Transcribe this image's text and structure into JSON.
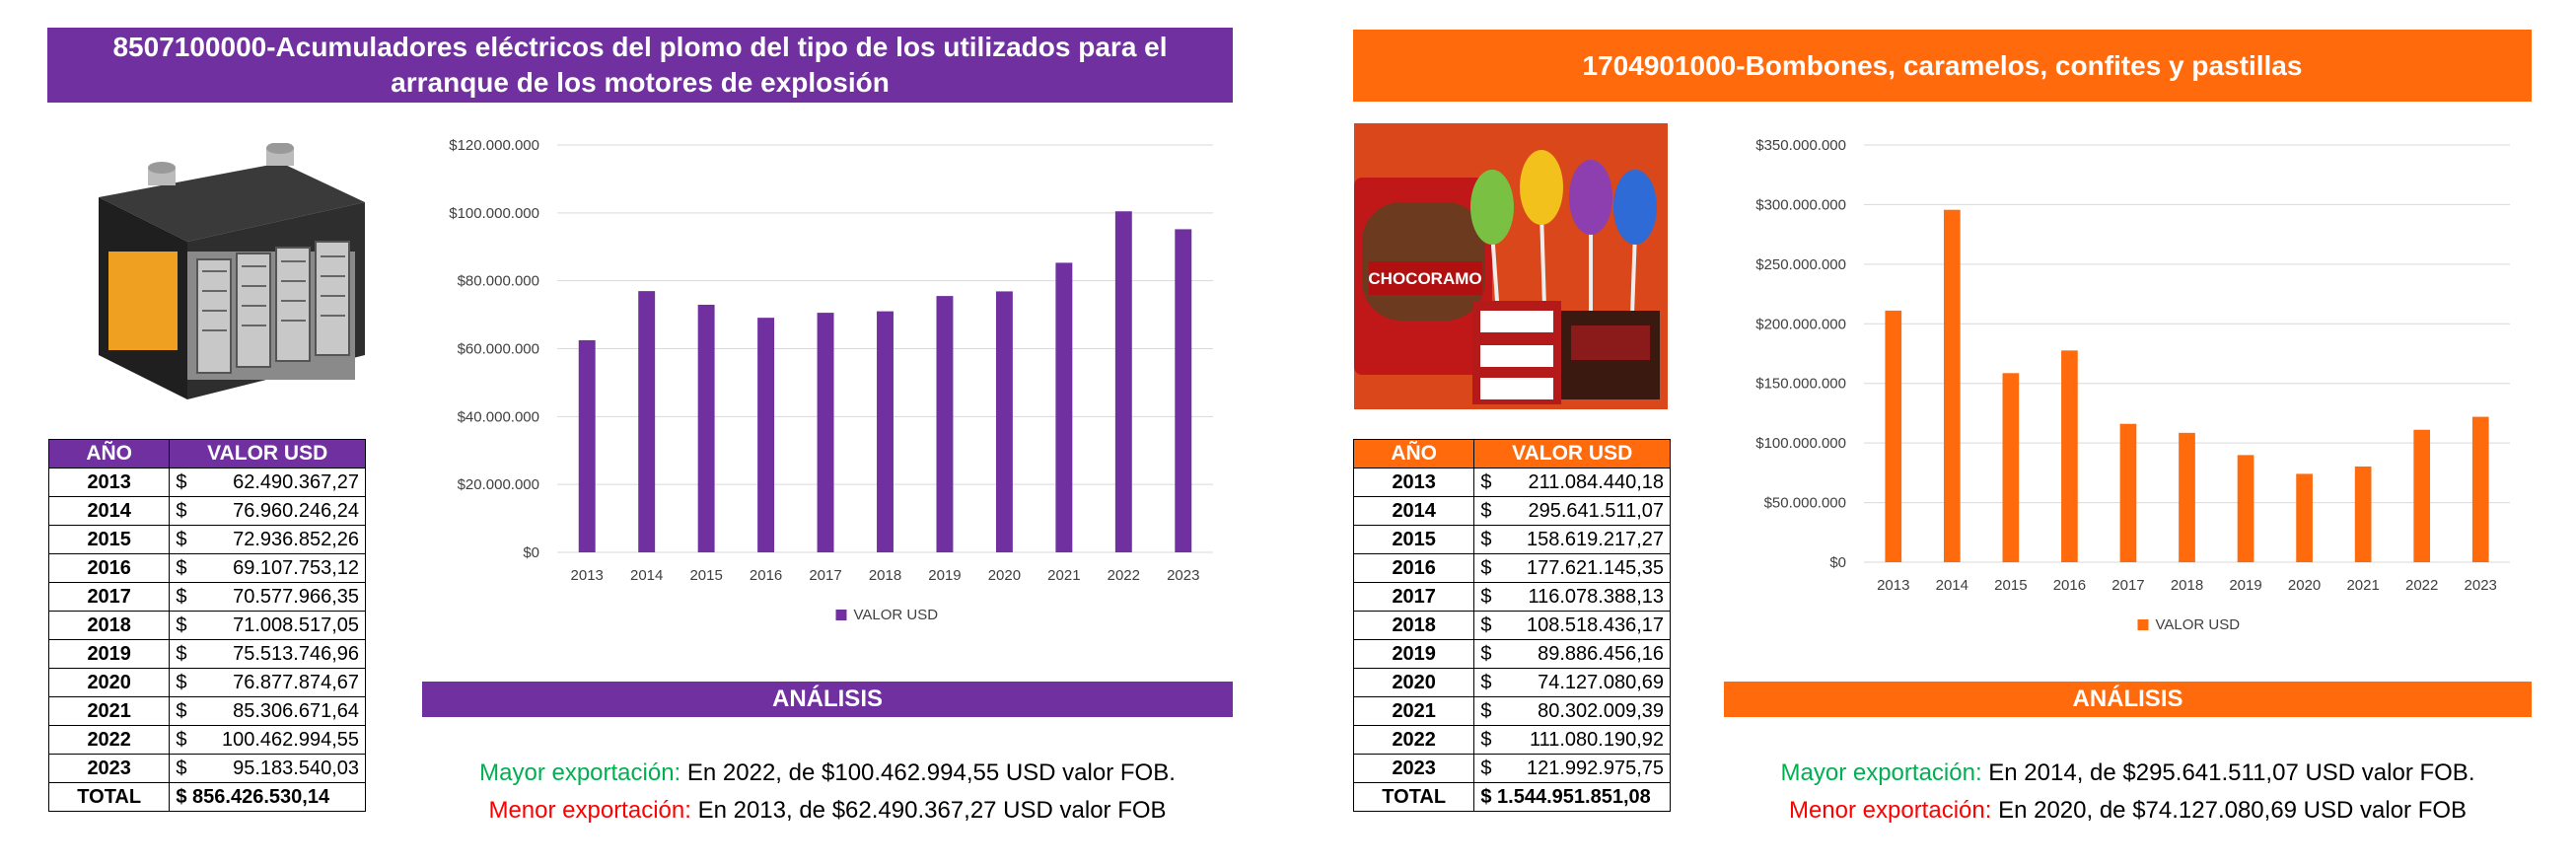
{
  "left": {
    "title": "8507100000-Acumuladores eléctricos del plomo del tipo de los utilizados para el arranque de los motores de explosión",
    "image_icon": "car-battery-illustration",
    "table": {
      "header_year": "AÑO",
      "header_value": "VALOR USD",
      "currency": "$",
      "rows": [
        {
          "year": "2013",
          "value": "62.490.367,27"
        },
        {
          "year": "2014",
          "value": "76.960.246,24"
        },
        {
          "year": "2015",
          "value": "72.936.852,26"
        },
        {
          "year": "2016",
          "value": "69.107.753,12"
        },
        {
          "year": "2017",
          "value": "70.577.966,35"
        },
        {
          "year": "2018",
          "value": "71.008.517,05"
        },
        {
          "year": "2019",
          "value": "75.513.746,96"
        },
        {
          "year": "2020",
          "value": "76.877.874,67"
        },
        {
          "year": "2021",
          "value": "85.306.671,64"
        },
        {
          "year": "2022",
          "value": "100.462.994,55"
        },
        {
          "year": "2023",
          "value": "95.183.540,03"
        }
      ],
      "total_label": "TOTAL",
      "total_value": "$ 856.426.530,14"
    },
    "analysis": {
      "title": "ANÁLISIS",
      "max_label": "Mayor exportación:",
      "max_text": " En 2022, de $100.462.994,55 USD valor FOB.",
      "min_label": "Menor exportación:",
      "min_text": " En 2013, de $62.490.367,27 USD valor FOB"
    },
    "chart_data": {
      "type": "bar",
      "color": "#7030A0",
      "categories": [
        "2013",
        "2014",
        "2015",
        "2016",
        "2017",
        "2018",
        "2019",
        "2020",
        "2021",
        "2022",
        "2023"
      ],
      "series": [
        {
          "name": "VALOR USD",
          "values": [
            62490367.27,
            76960246.24,
            72936852.26,
            69107753.12,
            70577966.35,
            71008517.05,
            75513746.96,
            76877874.67,
            85306671.64,
            100462994.55,
            95183540.03
          ]
        }
      ],
      "ylim": [
        0,
        120000000
      ],
      "yticks": [
        "$0",
        "$20.000.000",
        "$40.000.000",
        "$60.000.000",
        "$80.000.000",
        "$100.000.000",
        "$120.000.000"
      ],
      "legend": "bottom"
    }
  },
  "right": {
    "title": "1704901000-Bombones, caramelos, confites y pastillas",
    "image_icon": "candy-products-photo",
    "image_text": "CHOCORAMO",
    "table": {
      "header_year": "AÑO",
      "header_value": "VALOR USD",
      "currency": "$",
      "rows": [
        {
          "year": "2013",
          "value": "211.084.440,18"
        },
        {
          "year": "2014",
          "value": "295.641.511,07"
        },
        {
          "year": "2015",
          "value": "158.619.217,27"
        },
        {
          "year": "2016",
          "value": "177.621.145,35"
        },
        {
          "year": "2017",
          "value": "116.078.388,13"
        },
        {
          "year": "2018",
          "value": "108.518.436,17"
        },
        {
          "year": "2019",
          "value": "89.886.456,16"
        },
        {
          "year": "2020",
          "value": "74.127.080,69"
        },
        {
          "year": "2021",
          "value": "80.302.009,39"
        },
        {
          "year": "2022",
          "value": "111.080.190,92"
        },
        {
          "year": "2023",
          "value": "121.992.975,75"
        }
      ],
      "total_label": "TOTAL",
      "total_value": "$ 1.544.951.851,08"
    },
    "analysis": {
      "title": "ANÁLISIS",
      "max_label": "Mayor exportación:",
      "max_text": " En 2014, de $295.641.511,07 USD valor FOB.",
      "min_label": "Menor exportación:",
      "min_text": " En 2020, de $74.127.080,69 USD valor FOB"
    },
    "chart_data": {
      "type": "bar",
      "color": "#FF6A0D",
      "categories": [
        "2013",
        "2014",
        "2015",
        "2016",
        "2017",
        "2018",
        "2019",
        "2020",
        "2021",
        "2022",
        "2023"
      ],
      "series": [
        {
          "name": "VALOR USD",
          "values": [
            211084440.18,
            295641511.07,
            158619217.27,
            177621145.35,
            116078388.13,
            108518436.17,
            89886456.16,
            74127080.69,
            80302009.39,
            111080190.92,
            121992975.75
          ]
        }
      ],
      "ylim": [
        0,
        350000000
      ],
      "yticks": [
        "$0",
        "$50.000.000",
        "$100.000.000",
        "$150.000.000",
        "$200.000.000",
        "$250.000.000",
        "$300.000.000",
        "$350.000.000"
      ],
      "legend": "bottom"
    }
  }
}
